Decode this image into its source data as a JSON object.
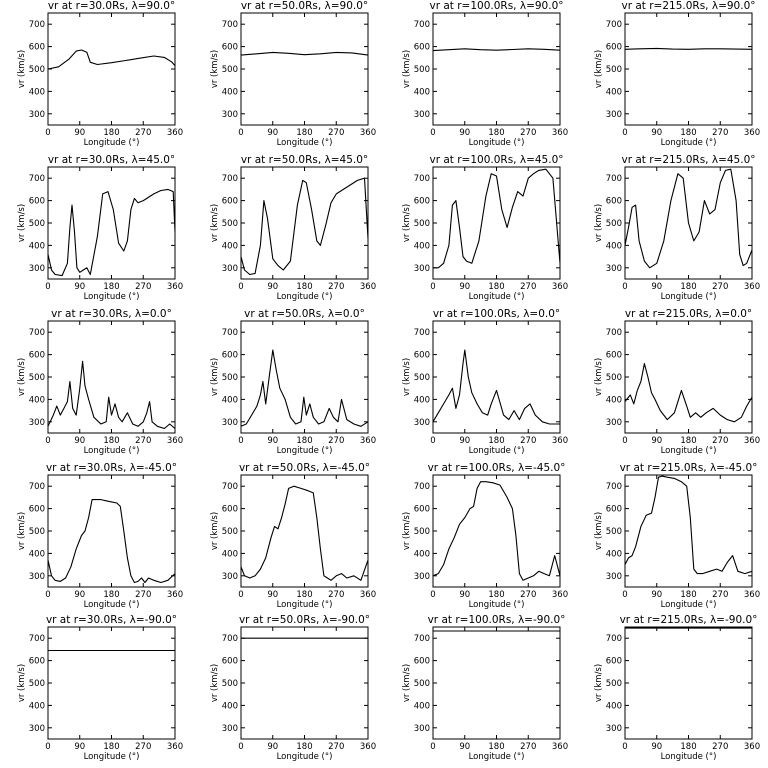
{
  "chart_data": {
    "type": "line",
    "xlabel": "Longitude (°)",
    "ylabel": "vr (km/s)",
    "xlim": [
      0,
      360
    ],
    "ylim": [
      250,
      750
    ],
    "xticks": [
      "0",
      "90",
      "180",
      "270",
      "360"
    ],
    "yticks": [
      "300",
      "400",
      "500",
      "600",
      "700"
    ],
    "grid": false,
    "rows": [
      {
        "latitude": "90.0",
        "panels": [
          {
            "title": "vr at r=30.0Rs, λ=90.0°",
            "x": [
              0,
              30,
              60,
              80,
              95,
              110,
              120,
              140,
              180,
              220,
              260,
              300,
              330,
              350,
              360
            ],
            "y": [
              500,
              510,
              545,
              580,
              585,
              575,
              530,
              520,
              528,
              538,
              548,
              558,
              552,
              532,
              515
            ]
          },
          {
            "title": "vr at r=50.0Rs, λ=90.0°",
            "x": [
              0,
              45,
              90,
              135,
              180,
              225,
              270,
              315,
              360
            ],
            "y": [
              562,
              568,
              574,
              570,
              564,
              568,
              574,
              572,
              562
            ]
          },
          {
            "title": "vr at r=100.0Rs, λ=90.0°",
            "x": [
              0,
              45,
              90,
              135,
              180,
              225,
              270,
              315,
              360
            ],
            "y": [
              582,
              586,
              590,
              586,
              584,
              587,
              590,
              588,
              584
            ]
          },
          {
            "title": "vr at r=215.0Rs, λ=90.0°",
            "x": [
              0,
              45,
              90,
              135,
              180,
              225,
              270,
              315,
              360
            ],
            "y": [
              588,
              590,
              592,
              589,
              588,
              590,
              590,
              589,
              588
            ]
          }
        ]
      },
      {
        "latitude": "45.0",
        "panels": [
          {
            "title": "vr at r=30.0Rs, λ=45.0°",
            "x": [
              0,
              10,
              20,
              40,
              55,
              62,
              68,
              75,
              82,
              90,
              100,
              110,
              120,
              140,
              155,
              170,
              185,
              200,
              215,
              225,
              235,
              245,
              255,
              270,
              300,
              320,
              340,
              355,
              360
            ],
            "y": [
              360,
              290,
              270,
              265,
              320,
              480,
              580,
              460,
              300,
              280,
              290,
              300,
              270,
              440,
              630,
              640,
              560,
              410,
              375,
              420,
              560,
              610,
              590,
              600,
              630,
              645,
              650,
              640,
              460
            ]
          },
          {
            "title": "vr at r=50.0Rs, λ=45.0°",
            "x": [
              0,
              10,
              25,
              40,
              55,
              65,
              75,
              90,
              105,
              120,
              140,
              160,
              175,
              185,
              200,
              215,
              225,
              240,
              255,
              270,
              290,
              310,
              330,
              350,
              360
            ],
            "y": [
              350,
              290,
              270,
              275,
              400,
              600,
              520,
              340,
              310,
              290,
              330,
              580,
              690,
              680,
              560,
              420,
              400,
              490,
              590,
              630,
              650,
              670,
              690,
              700,
              430
            ]
          },
          {
            "title": "vr at r=100.0Rs, λ=45.0°",
            "x": [
              0,
              15,
              30,
              45,
              55,
              65,
              75,
              85,
              95,
              110,
              130,
              150,
              165,
              180,
              195,
              210,
              225,
              240,
              255,
              270,
              285,
              300,
              320,
              340,
              360
            ],
            "y": [
              300,
              300,
              320,
              400,
              580,
              600,
              480,
              350,
              330,
              320,
              420,
              620,
              720,
              710,
              560,
              480,
              570,
              640,
              620,
              700,
              720,
              735,
              740,
              700,
              320
            ]
          },
          {
            "title": "vr at r=215.0Rs, λ=45.0°",
            "x": [
              0,
              10,
              20,
              30,
              40,
              55,
              70,
              90,
              110,
              130,
              150,
              165,
              180,
              195,
              210,
              225,
              240,
              255,
              270,
              285,
              300,
              315,
              325,
              335,
              345,
              360
            ],
            "y": [
              400,
              480,
              570,
              580,
              420,
              330,
              300,
              320,
              420,
              600,
              720,
              700,
              500,
              420,
              460,
              600,
              540,
              560,
              680,
              735,
              740,
              600,
              360,
              310,
              320,
              380
            ]
          }
        ]
      },
      {
        "latitude": "0.0",
        "panels": [
          {
            "title": "vr at r=30.0Rs, λ=0.0°",
            "x": [
              0,
              15,
              25,
              35,
              45,
              55,
              62,
              70,
              80,
              90,
              98,
              105,
              115,
              130,
              150,
              165,
              172,
              180,
              190,
              200,
              210,
              225,
              240,
              255,
              270,
              280,
              288,
              295,
              310,
              330,
              345,
              360
            ],
            "y": [
              280,
              330,
              370,
              330,
              360,
              390,
              480,
              360,
              330,
              450,
              570,
              460,
              400,
              320,
              290,
              300,
              410,
              330,
              380,
              320,
              300,
              340,
              290,
              280,
              300,
              340,
              390,
              300,
              280,
              270,
              290,
              270
            ]
          },
          {
            "title": "vr at r=50.0Rs, λ=0.0°",
            "x": [
              0,
              15,
              30,
              45,
              55,
              62,
              70,
              80,
              90,
              100,
              110,
              125,
              140,
              155,
              170,
              178,
              185,
              195,
              205,
              220,
              235,
              250,
              262,
              275,
              285,
              300,
              320,
              340,
              360
            ],
            "y": [
              280,
              290,
              330,
              370,
              420,
              480,
              380,
              500,
              620,
              530,
              450,
              400,
              320,
              290,
              300,
              410,
              330,
              380,
              320,
              290,
              300,
              360,
              320,
              300,
              400,
              310,
              290,
              280,
              300
            ]
          },
          {
            "title": "vr at r=100.0Rs, λ=0.0°",
            "x": [
              0,
              15,
              30,
              45,
              55,
              65,
              75,
              85,
              90,
              100,
              110,
              125,
              140,
              155,
              165,
              180,
              200,
              215,
              230,
              245,
              260,
              275,
              290,
              310,
              330,
              360
            ],
            "y": [
              300,
              340,
              380,
              420,
              450,
              360,
              420,
              560,
              620,
              500,
              430,
              380,
              340,
              330,
              380,
              440,
              330,
              310,
              350,
              310,
              360,
              380,
              330,
              300,
              290,
              290
            ]
          },
          {
            "title": "vr at r=215.0Rs, λ=0.0°",
            "x": [
              0,
              15,
              25,
              35,
              45,
              55,
              65,
              75,
              85,
              100,
              120,
              140,
              160,
              175,
              185,
              200,
              215,
              230,
              250,
              270,
              290,
              310,
              330,
              345,
              360
            ],
            "y": [
              390,
              420,
              380,
              440,
              480,
              560,
              500,
              430,
              400,
              350,
              310,
              340,
              440,
              370,
              320,
              340,
              320,
              340,
              360,
              330,
              310,
              300,
              320,
              370,
              410
            ]
          }
        ]
      },
      {
        "latitude": "-45.0",
        "panels": [
          {
            "title": "vr at r=30.0Rs, λ=-45.0°",
            "x": [
              0,
              10,
              20,
              35,
              50,
              65,
              80,
              95,
              105,
              115,
              125,
              135,
              150,
              165,
              180,
              195,
              205,
              215,
              225,
              235,
              245,
              255,
              265,
              275,
              285,
              300,
              320,
              340,
              360
            ],
            "y": [
              370,
              300,
              280,
              275,
              290,
              340,
              420,
              480,
              500,
              560,
              640,
              640,
              640,
              635,
              630,
              625,
              610,
              500,
              380,
              300,
              270,
              275,
              290,
              270,
              290,
              280,
              270,
              280,
              310
            ]
          },
          {
            "title": "vr at r=50.0Rs, λ=-45.0°",
            "x": [
              0,
              10,
              25,
              40,
              55,
              70,
              85,
              95,
              105,
              115,
              125,
              135,
              150,
              170,
              190,
              205,
              215,
              225,
              235,
              245,
              255,
              270,
              285,
              300,
              320,
              340,
              360
            ],
            "y": [
              340,
              300,
              290,
              300,
              330,
              380,
              470,
              520,
              510,
              560,
              620,
              690,
              700,
              690,
              680,
              670,
              560,
              420,
              300,
              290,
              280,
              300,
              310,
              290,
              300,
              280,
              370
            ]
          },
          {
            "title": "vr at r=100.0Rs, λ=-45.0°",
            "x": [
              0,
              15,
              30,
              45,
              60,
              75,
              90,
              105,
              115,
              125,
              135,
              150,
              170,
              190,
              210,
              225,
              235,
              245,
              255,
              270,
              285,
              300,
              315,
              330,
              345,
              360
            ],
            "y": [
              300,
              310,
              350,
              420,
              470,
              530,
              560,
              600,
              610,
              690,
              720,
              720,
              715,
              705,
              650,
              600,
              480,
              310,
              280,
              290,
              300,
              320,
              310,
              300,
              390,
              300
            ]
          },
          {
            "title": "vr at r=215.0Rs, λ=-45.0°",
            "x": [
              0,
              10,
              20,
              30,
              45,
              60,
              75,
              85,
              95,
              105,
              120,
              140,
              160,
              175,
              185,
              195,
              205,
              220,
              240,
              260,
              275,
              290,
              305,
              320,
              340,
              360
            ],
            "y": [
              350,
              380,
              390,
              430,
              520,
              570,
              580,
              650,
              740,
              745,
              740,
              735,
              720,
              700,
              560,
              330,
              310,
              310,
              320,
              330,
              320,
              360,
              390,
              320,
              310,
              320
            ]
          }
        ]
      },
      {
        "latitude": "-90.0",
        "panels": [
          {
            "title": "vr at r=30.0Rs, λ=-90.0°",
            "x": [
              0,
              360
            ],
            "y": [
              645,
              645
            ]
          },
          {
            "title": "vr at r=50.0Rs, λ=-90.0°",
            "x": [
              0,
              360
            ],
            "y": [
              700,
              700
            ]
          },
          {
            "title": "vr at r=100.0Rs, λ=-90.0°",
            "x": [
              0,
              360
            ],
            "y": [
              732,
              732
            ]
          },
          {
            "title": "vr at r=215.0Rs, λ=-90.0°",
            "x": [
              0,
              360
            ],
            "y": [
              745,
              745
            ]
          }
        ]
      }
    ]
  }
}
